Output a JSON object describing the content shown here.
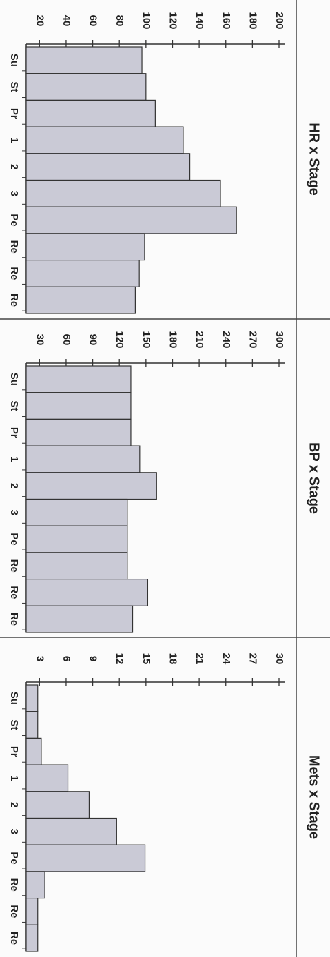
{
  "chart_data": [
    {
      "type": "bar",
      "orientation": "horizontal",
      "title": "HR x Stage",
      "categories": [
        "Su",
        "St",
        "Pr",
        "1",
        "2",
        "3",
        "Pe",
        "Re",
        "Re",
        "Re"
      ],
      "values": [
        97,
        100,
        107,
        128,
        133,
        156,
        168,
        99,
        95,
        92
      ],
      "color": "#cacad6",
      "ylim": [
        10,
        200
      ],
      "yticks": [
        20,
        40,
        60,
        80,
        100,
        120,
        140,
        160,
        180,
        200
      ]
    },
    {
      "type": "bar",
      "orientation": "horizontal",
      "title": "BP x Stage",
      "categories": [
        "Su",
        "St",
        "Pr",
        "1",
        "2",
        "3",
        "Pe",
        "Re",
        "Re",
        "Re"
      ],
      "values": [
        133,
        133,
        133,
        143,
        162,
        129,
        129,
        129,
        152,
        135
      ],
      "color": "#cacad6",
      "ylim": [
        15,
        300
      ],
      "yticks": [
        30,
        60,
        90,
        120,
        150,
        180,
        210,
        240,
        270,
        300
      ]
    },
    {
      "type": "bar",
      "orientation": "horizontal",
      "title": "Mets x Stage",
      "categories": [
        "Su",
        "St",
        "Pr",
        "1",
        "2",
        "3",
        "Pe",
        "Re",
        "Re",
        "Re"
      ],
      "values": [
        2.8,
        2.8,
        3.2,
        6.2,
        8.6,
        11.7,
        14.9,
        3.6,
        2.8,
        2.8
      ],
      "color": "#cacad6",
      "ylim": [
        1.5,
        30
      ],
      "yticks": [
        3,
        6,
        9,
        12,
        15,
        18,
        21,
        24,
        27,
        30
      ]
    }
  ]
}
